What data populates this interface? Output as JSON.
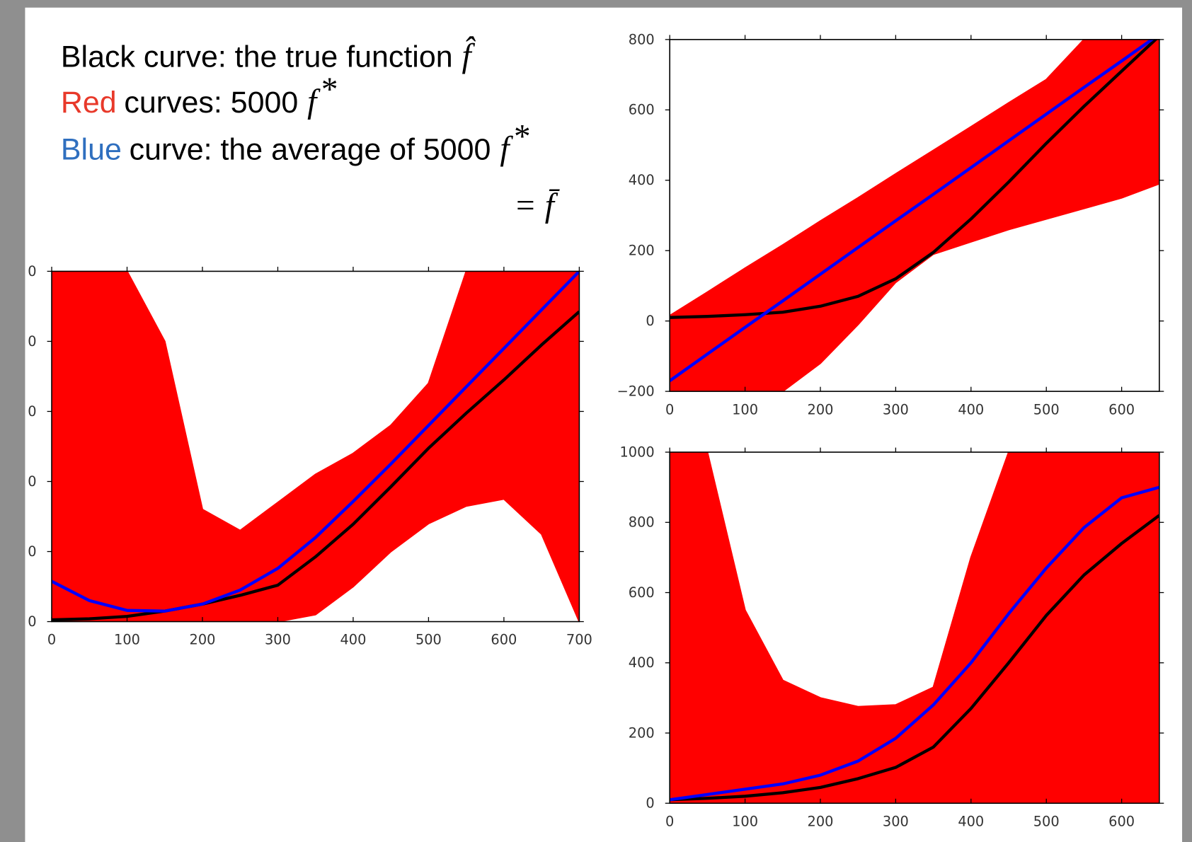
{
  "caption": [
    [
      {
        "text": "Black curve: the true function",
        "color": "#000000"
      },
      {
        "math": "f̂",
        "color": "#000000"
      }
    ],
    [
      {
        "text": "Red",
        "color": "#e8392a"
      },
      {
        "text": "curves: 5000",
        "color": "#000000"
      },
      {
        "math": "f",
        "sup": "*",
        "color": "#000000"
      }
    ],
    [
      {
        "text": "Blue",
        "color": "#2f6fbf"
      },
      {
        "text": "curve: the average of 5000",
        "color": "#000000"
      },
      {
        "math": "f",
        "sup": "*",
        "color": "#000000"
      }
    ],
    [
      {
        "math": "= f̄",
        "color": "#000000"
      }
    ]
  ],
  "chart_data": [
    {
      "type": "line",
      "x": [
        0,
        50,
        100,
        150,
        200,
        250,
        300,
        350,
        400,
        450,
        500,
        550,
        600,
        650,
        700
      ],
      "xlim": [
        0,
        700
      ],
      "xticks": [
        0,
        100,
        200,
        300,
        400,
        500,
        600,
        700
      ],
      "ylim": [
        0,
        1000
      ],
      "yticks": [
        0,
        {
          "value": 200,
          "label": "0"
        },
        {
          "value": 400,
          "label": "0"
        },
        {
          "value": 600,
          "label": "0"
        },
        {
          "value": 800,
          "label": "0"
        },
        {
          "value": 1000,
          "label": "0"
        }
      ],
      "band": {
        "color": "#ff0000",
        "upper": [
          1000,
          1000,
          1000,
          800,
          320,
          260,
          340,
          420,
          480,
          560,
          680,
          1000,
          1000,
          1000,
          1000
        ],
        "lower": [
          0,
          0,
          0,
          0,
          0,
          0,
          0,
          20,
          100,
          200,
          280,
          330,
          350,
          250,
          0
        ]
      },
      "series": [
        {
          "color": "#000000",
          "values": [
            5,
            8,
            15,
            30,
            50,
            75,
            104,
            185,
            278,
            385,
            495,
            595,
            690,
            790,
            885
          ]
        },
        {
          "color": "#0000ff",
          "values": [
            115,
            60,
            32,
            30,
            50,
            90,
            152,
            240,
            343,
            450,
            560,
            670,
            780,
            890,
            1000
          ]
        }
      ]
    },
    {
      "type": "line",
      "x": [
        0,
        50,
        100,
        150,
        200,
        250,
        300,
        350,
        400,
        450,
        500,
        550,
        600,
        650
      ],
      "xlim": [
        0,
        650
      ],
      "xticks": [
        0,
        100,
        200,
        300,
        400,
        500,
        600
      ],
      "ylim": [
        -200,
        800
      ],
      "yticks": [
        {
          "value": -200,
          "label": "−200"
        },
        0,
        200,
        400,
        600,
        800
      ],
      "band": {
        "color": "#ff0000",
        "upper": [
          15,
          82,
          150,
          216,
          284,
          350,
          418,
          485,
          552,
          620,
          686,
          800,
          800,
          800
        ],
        "lower": [
          -200,
          -200,
          -200,
          -200,
          -120,
          -10,
          110,
          190,
          225,
          260,
          290,
          320,
          350,
          390
        ]
      },
      "series": [
        {
          "color": "#000000",
          "values": [
            10,
            13,
            18,
            25,
            42,
            70,
            120,
            195,
            290,
            395,
            505,
            610,
            710,
            810
          ]
        },
        {
          "color": "#0000ff",
          "values": [
            -170,
            -94,
            -18,
            57,
            133,
            209,
            285,
            360,
            436,
            512,
            588,
            664,
            739,
            815
          ]
        }
      ]
    },
    {
      "type": "line",
      "x": [
        0,
        50,
        100,
        150,
        200,
        250,
        300,
        350,
        400,
        450,
        500,
        550,
        600,
        650
      ],
      "xlim": [
        0,
        650
      ],
      "xticks": [
        0,
        100,
        200,
        300,
        400,
        500,
        600
      ],
      "ylim": [
        0,
        1000
      ],
      "yticks": [
        0,
        200,
        400,
        600,
        800,
        1000
      ],
      "band": {
        "color": "#ff0000",
        "upper": [
          1000,
          1000,
          550,
          350,
          300,
          275,
          280,
          330,
          700,
          1000,
          1000,
          1000,
          1000,
          1000
        ],
        "lower": [
          0,
          0,
          0,
          0,
          0,
          0,
          0,
          0,
          0,
          0,
          0,
          0,
          0,
          0
        ]
      },
      "series": [
        {
          "color": "#000000",
          "values": [
            10,
            14,
            20,
            30,
            45,
            70,
            102,
            160,
            270,
            400,
            535,
            650,
            740,
            820
          ]
        },
        {
          "color": "#0000ff",
          "values": [
            10,
            25,
            40,
            55,
            80,
            120,
            185,
            280,
            400,
            540,
            670,
            785,
            870,
            900
          ]
        }
      ]
    }
  ]
}
